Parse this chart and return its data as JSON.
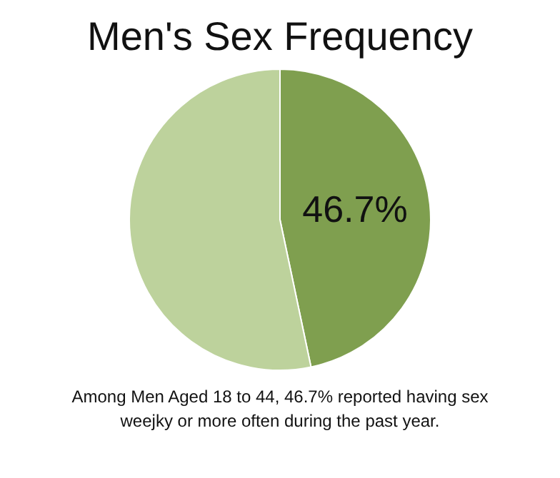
{
  "chart_data": {
    "type": "pie",
    "title": "Men's Sex Frequency",
    "categories": [
      null,
      null
    ],
    "values": [
      46.7,
      53.3
    ],
    "colors": [
      "#7f9f4f",
      "#bdd29c"
    ],
    "value_labels": [
      "46.7%",
      null
    ],
    "legend": false,
    "annotations": [
      "Among Men Aged 18 to 44, 46.7% reported having sex weejky or more often during the past year."
    ]
  }
}
